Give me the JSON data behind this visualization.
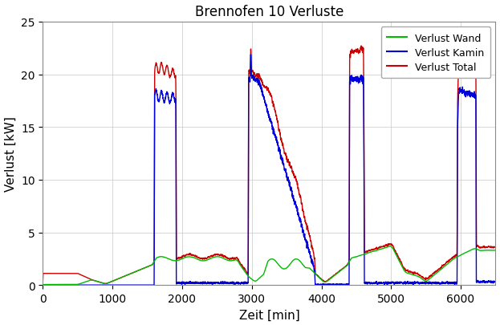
{
  "title": "Brennofen 10 Verluste",
  "xlabel": "Zeit [min]",
  "ylabel": "Verlust [kW]",
  "xlim": [
    0,
    6500
  ],
  "ylim": [
    0,
    25
  ],
  "xticks": [
    0,
    1000,
    2000,
    3000,
    4000,
    5000,
    6000
  ],
  "yticks": [
    0,
    5,
    10,
    15,
    20,
    25
  ],
  "legend_labels": [
    "Verlust Wand",
    "Verlust Kamin",
    "Verlust Total"
  ],
  "colors": {
    "wand": "#00bb00",
    "kamin": "#0000dd",
    "total": "#cc0000"
  },
  "linewidth": 1.0,
  "background_color": "#ffffff",
  "title_fontsize": 12,
  "label_fontsize": 11
}
